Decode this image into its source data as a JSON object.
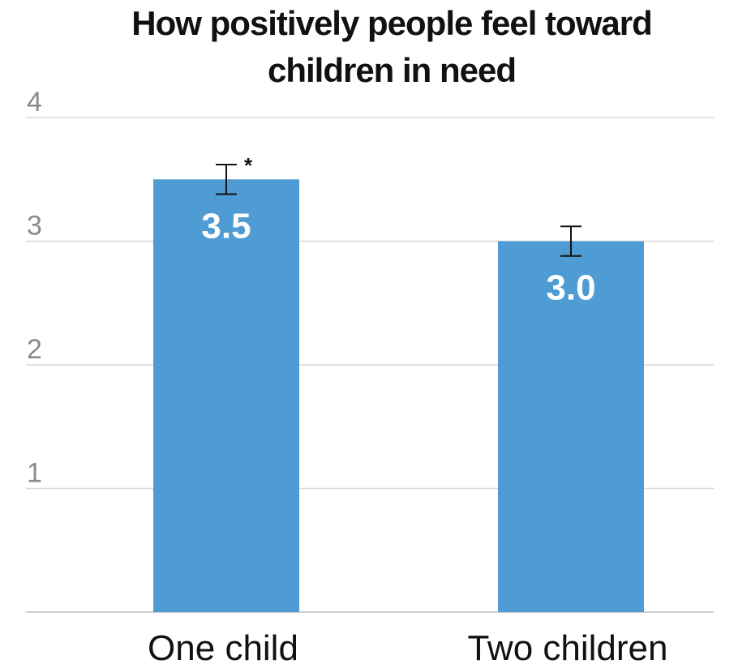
{
  "chart_data": {
    "type": "bar",
    "title_line1": "How positively people feel toward",
    "title_line2": "children in need",
    "categories": [
      "One child",
      "Two children"
    ],
    "values": [
      3.5,
      3.0
    ],
    "value_labels": [
      "3.5",
      "3.0"
    ],
    "error_bars": [
      {
        "low": 3.38,
        "high": 3.62
      },
      {
        "low": 2.88,
        "high": 3.12
      }
    ],
    "annotations": [
      "*",
      ""
    ],
    "ylim": [
      0,
      4
    ],
    "yticks": [
      1,
      2,
      3,
      4
    ],
    "ytick_labels": [
      "1",
      "2",
      "3",
      "4"
    ],
    "grid": true,
    "xlabel": "",
    "ylabel": "",
    "bar_color": "#4f9bd3",
    "grid_color": "#d9d9d9",
    "axis_color": "#bfbfbf",
    "errorbar_color": "#111111"
  }
}
